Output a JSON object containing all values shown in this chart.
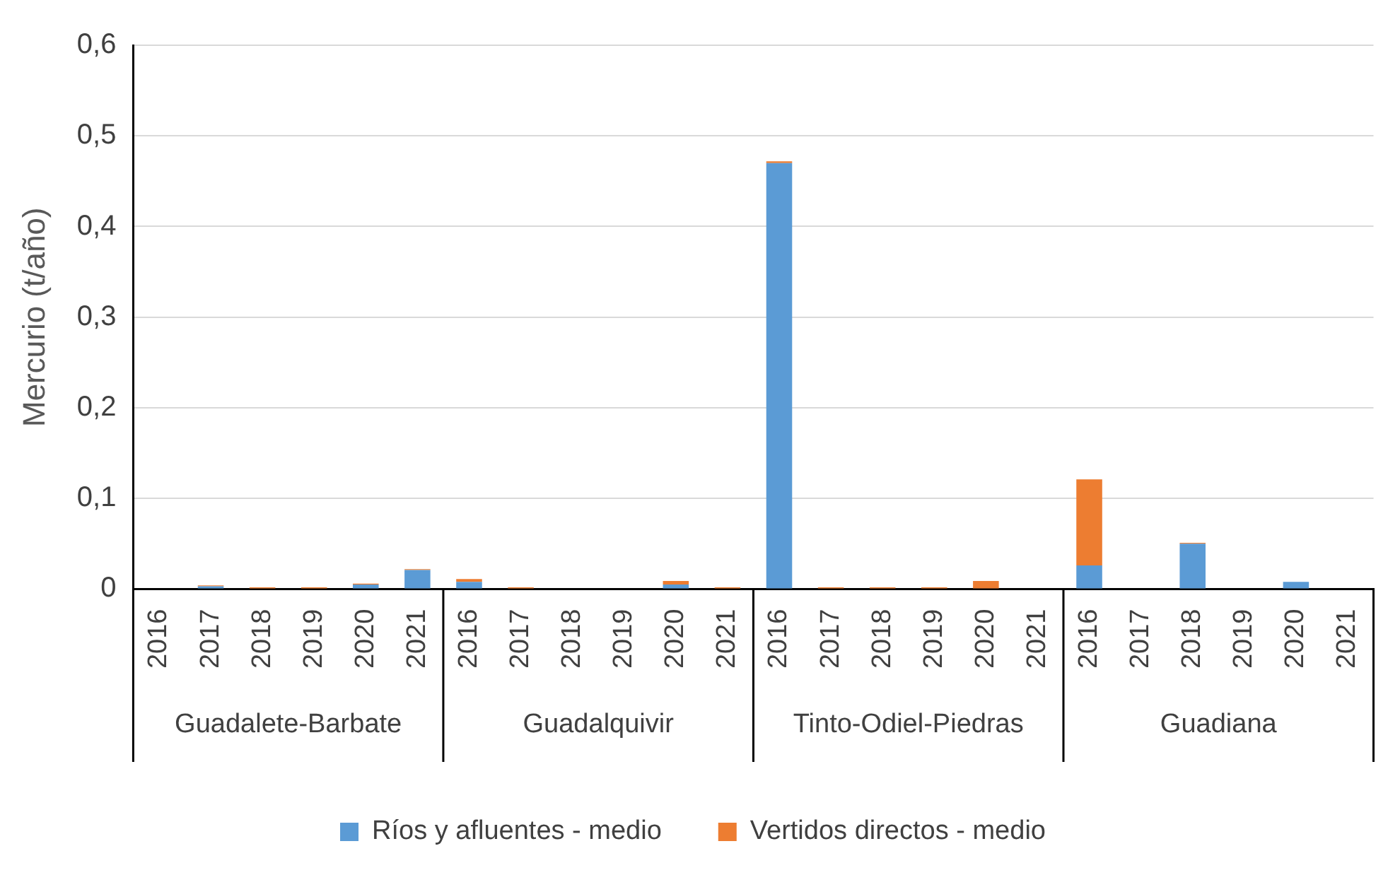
{
  "chart_data": {
    "type": "bar",
    "stacked": true,
    "ylabel": "Mercurio (t/año)",
    "categories": [
      "2016",
      "2017",
      "2018",
      "2019",
      "2020",
      "2021",
      "2016",
      "2017",
      "2018",
      "2019",
      "2020",
      "2021",
      "2016",
      "2017",
      "2018",
      "2019",
      "2020",
      "2021",
      "2016",
      "2017",
      "2018",
      "2019",
      "2020",
      "2021"
    ],
    "annotations": [
      "Guadalete-Barbate",
      "Guadalquivir",
      "Tinto-Odiel-Piedras",
      "Guadiana"
    ],
    "series": [
      {
        "name": "Ríos y afluentes - medio",
        "color": "#5b9bd5",
        "values": [
          0,
          0.003,
          0,
          0,
          0.005,
          0.021,
          0.008,
          0,
          0,
          0,
          0.005,
          0,
          0.47,
          0,
          0,
          0,
          0,
          0,
          0.026,
          0,
          0.05,
          0,
          0.008,
          0
        ]
      },
      {
        "name": "Vertidos directos - medio",
        "color": "#ed7d31",
        "values": [
          0,
          0.001,
          0.002,
          0.002,
          0.001,
          0.001,
          0.003,
          0.002,
          0,
          0,
          0.004,
          0.002,
          0.002,
          0.002,
          0.002,
          0.002,
          0.009,
          0,
          0.095,
          0,
          0.001,
          0,
          0,
          0
        ]
      }
    ],
    "ylim": [
      0,
      0.6
    ],
    "yticks": [
      0,
      {
        "value": 0.1,
        "label": "0,1"
      },
      {
        "value": 0.2,
        "label": "0,2"
      },
      {
        "value": 0.3,
        "label": "0,3"
      },
      {
        "value": 0.4,
        "label": "0,4"
      },
      {
        "value": 0.5,
        "label": "0,5"
      },
      {
        "value": 0.6,
        "label": "0,6"
      }
    ],
    "grid": "y",
    "legend": "bottom"
  }
}
